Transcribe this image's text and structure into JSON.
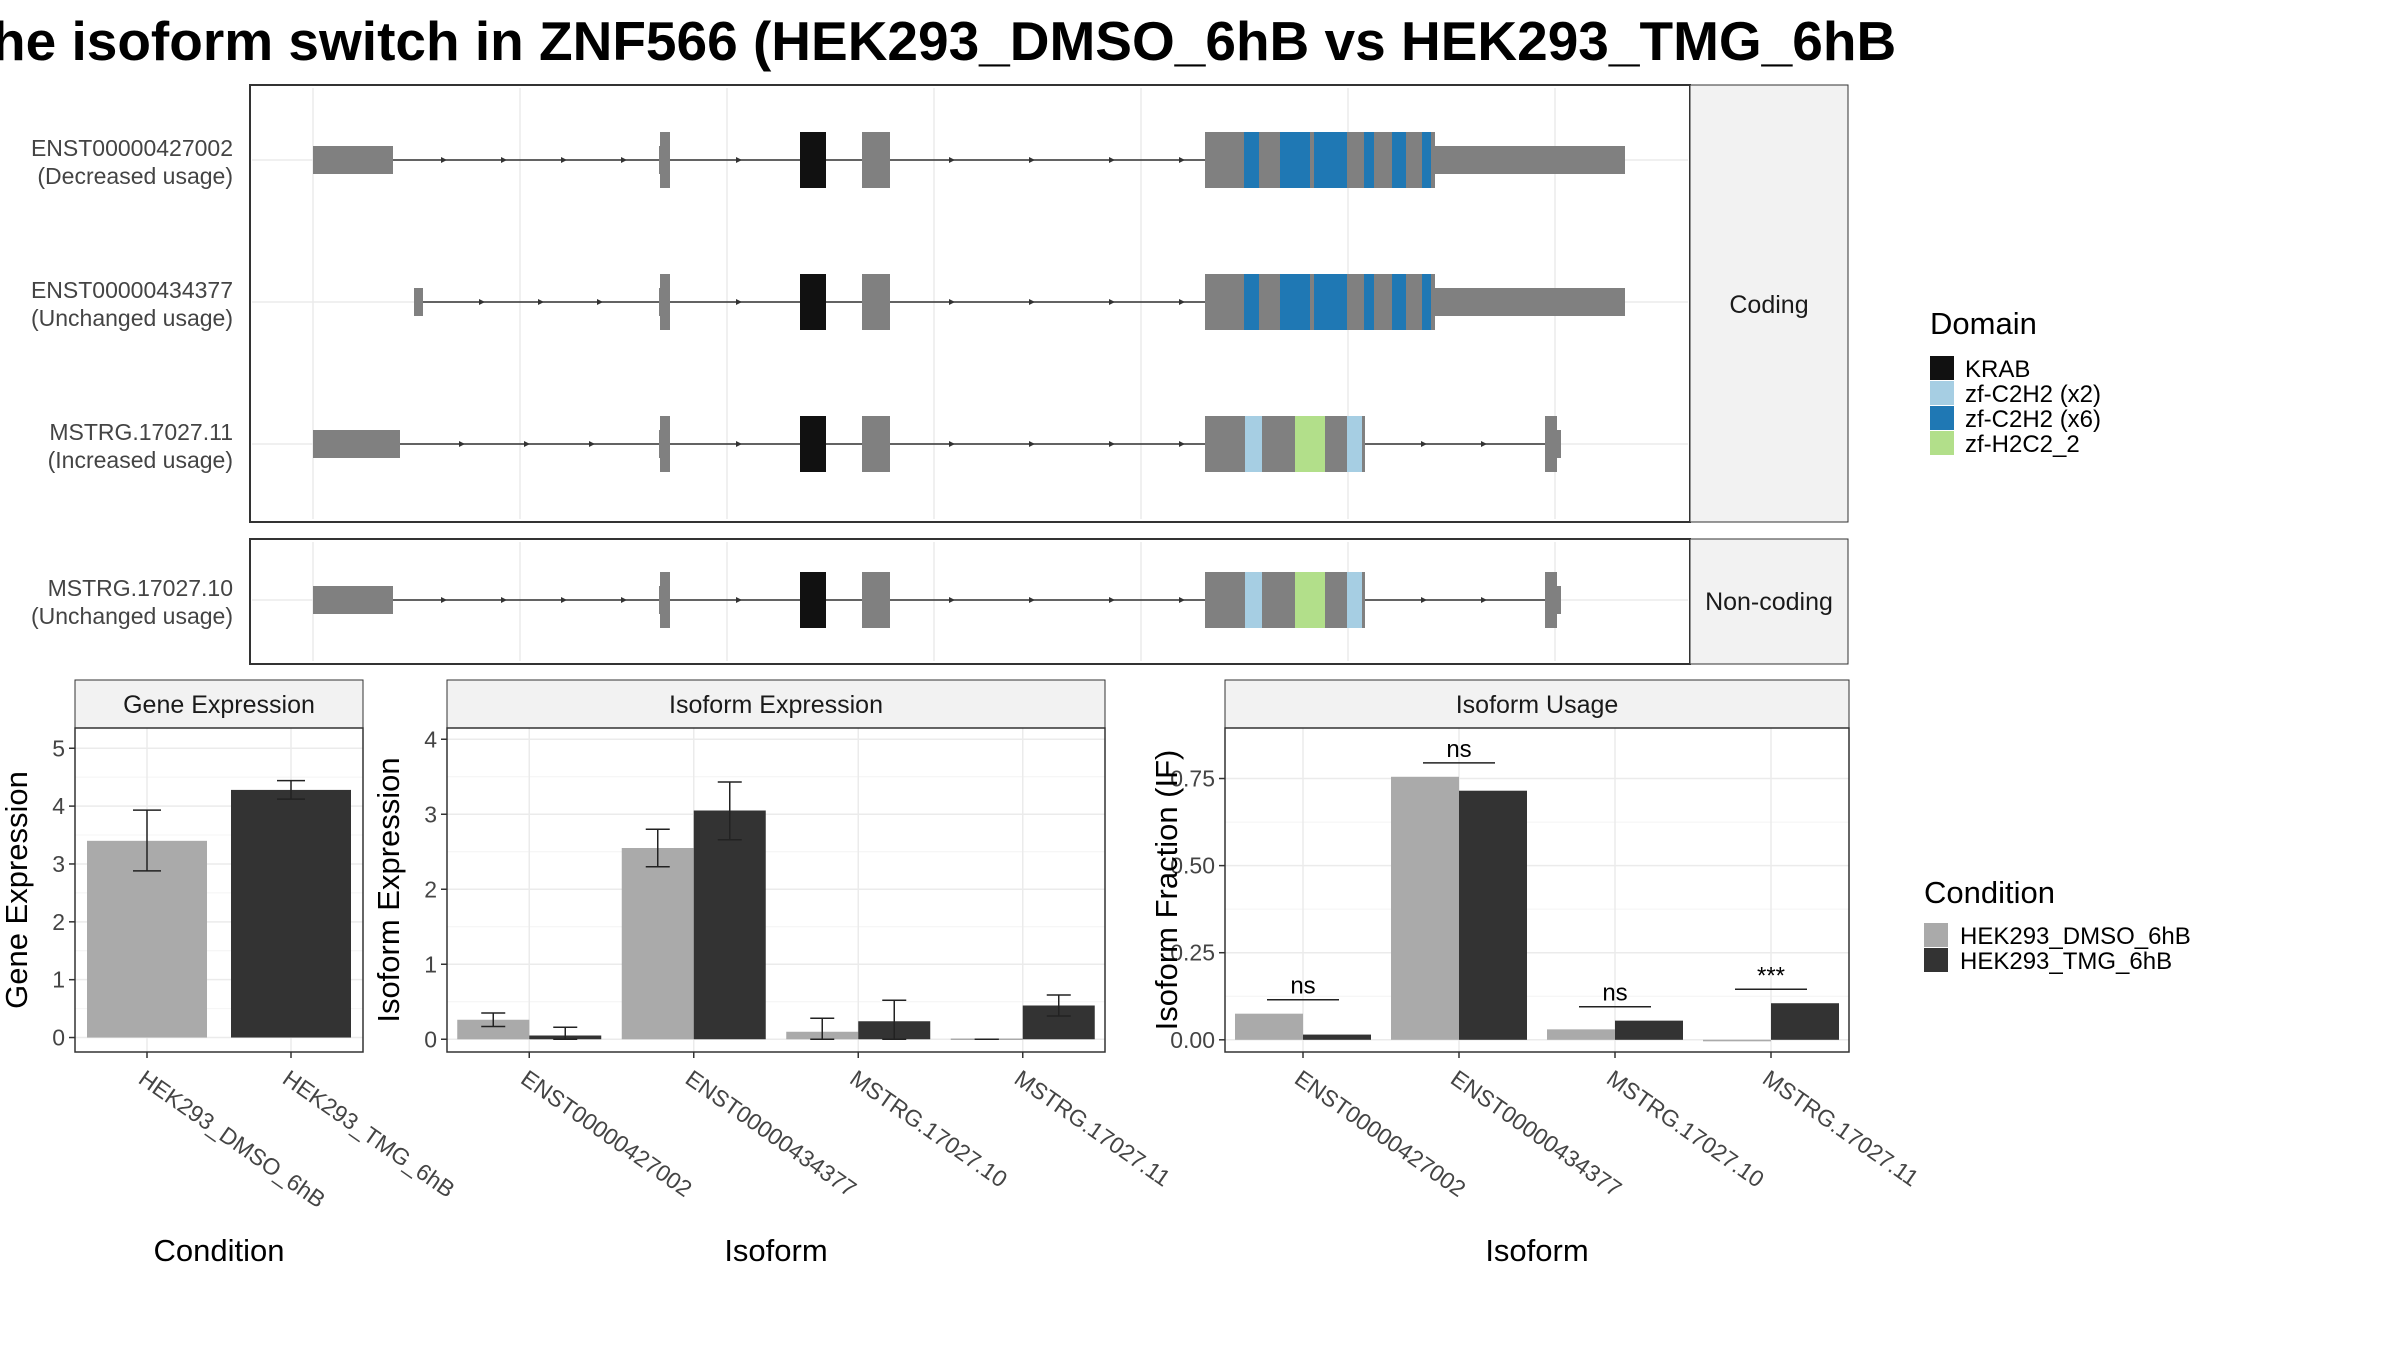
{
  "title": "he isoform switch in ZNF566 (HEK293_DMSO_6hB vs HEK293_TMG_6hB",
  "colors": {
    "exon": "#808080",
    "KRAB": "#111111",
    "zf_C2H2_x2": "#a6cee3",
    "zf_C2H2_x6": "#1f78b4",
    "zf_H2C2_2": "#b2df8a",
    "cond1": "#aaaaaa",
    "cond2": "#333333"
  },
  "structure": {
    "facets": {
      "coding": "Coding",
      "noncoding": "Non-coding"
    },
    "transcripts": [
      {
        "id": "ENST00000427002",
        "label": "(Decreased usage)",
        "facet": "coding"
      },
      {
        "id": "ENST00000434377",
        "label": "(Unchanged usage)",
        "facet": "coding"
      },
      {
        "id": "MSTRG.17027.11",
        "label": "(Increased usage)",
        "facet": "coding"
      },
      {
        "id": "MSTRG.17027.10",
        "label": "(Unchanged usage)",
        "facet": "noncoding"
      }
    ]
  },
  "legends": {
    "domain": {
      "title": "Domain",
      "items": [
        {
          "label": "KRAB",
          "color": "#111111"
        },
        {
          "label": "zf-C2H2 (x2)",
          "color": "#a6cee3"
        },
        {
          "label": "zf-C2H2 (x6)",
          "color": "#1f78b4"
        },
        {
          "label": "zf-H2C2_2",
          "color": "#b2df8a"
        }
      ]
    },
    "condition": {
      "title": "Condition",
      "items": [
        {
          "label": "HEK293_DMSO_6hB",
          "color": "#aaaaaa"
        },
        {
          "label": "HEK293_TMG_6hB",
          "color": "#333333"
        }
      ]
    }
  },
  "chart_data": [
    {
      "type": "bar",
      "strip": "Gene Expression",
      "xlabel": "Condition",
      "ylabel": "Gene Expression",
      "categories": [
        "HEK293_DMSO_6hB",
        "HEK293_TMG_6hB"
      ],
      "values": [
        3.4,
        4.28
      ],
      "errors": [
        [
          2.88,
          3.93
        ],
        [
          4.12,
          4.44
        ]
      ],
      "colors": [
        "#aaaaaa",
        "#333333"
      ],
      "ylim": [
        -0.25,
        5.35
      ],
      "yticks": [
        0,
        1,
        2,
        3,
        4,
        5
      ],
      "ytick_labels": [
        "0",
        "1",
        "2",
        "3",
        "4",
        "5"
      ]
    },
    {
      "type": "bar",
      "strip": "Isoform Expression",
      "xlabel": "Isoform",
      "ylabel": "Isoform Expression",
      "categories": [
        "ENST00000427002",
        "ENST00000434377",
        "MSTRG.17027.10",
        "MSTRG.17027.11"
      ],
      "series": [
        {
          "name": "HEK293_DMSO_6hB",
          "values": [
            0.26,
            2.55,
            0.1,
            0.01
          ],
          "errors": [
            [
              0.17,
              0.35
            ],
            [
              2.3,
              2.8
            ],
            [
              0.0,
              0.28
            ],
            [
              0.0,
              0.0
            ]
          ]
        },
        {
          "name": "HEK293_TMG_6hB",
          "values": [
            0.05,
            3.05,
            0.24,
            0.45
          ],
          "errors": [
            [
              0.0,
              0.16
            ],
            [
              2.66,
              3.43
            ],
            [
              0.0,
              0.52
            ],
            [
              0.31,
              0.59
            ]
          ]
        }
      ],
      "ylim": [
        -0.17,
        4.15
      ],
      "yticks": [
        0,
        1,
        2,
        3,
        4
      ],
      "ytick_labels": [
        "0",
        "1",
        "2",
        "3",
        "4"
      ]
    },
    {
      "type": "bar",
      "strip": "Isoform Usage",
      "xlabel": "Isoform",
      "ylabel": "Isoform Fraction (IF)",
      "categories": [
        "ENST00000427002",
        "ENST00000434377",
        "MSTRG.17027.10",
        "MSTRG.17027.11"
      ],
      "series": [
        {
          "name": "HEK293_DMSO_6hB",
          "values": [
            0.075,
            0.755,
            0.03,
            0.0
          ]
        },
        {
          "name": "HEK293_TMG_6hB",
          "values": [
            0.015,
            0.715,
            0.055,
            0.105
          ]
        }
      ],
      "significance": [
        "ns",
        "ns",
        "ns",
        "***"
      ],
      "significance_y": [
        0.115,
        0.795,
        0.095,
        0.145
      ],
      "ylim": [
        -0.035,
        0.895
      ],
      "yticks": [
        0,
        0.25,
        0.5,
        0.75
      ],
      "ytick_labels": [
        "0.00",
        "0.25",
        "0.50",
        "0.75"
      ]
    }
  ]
}
